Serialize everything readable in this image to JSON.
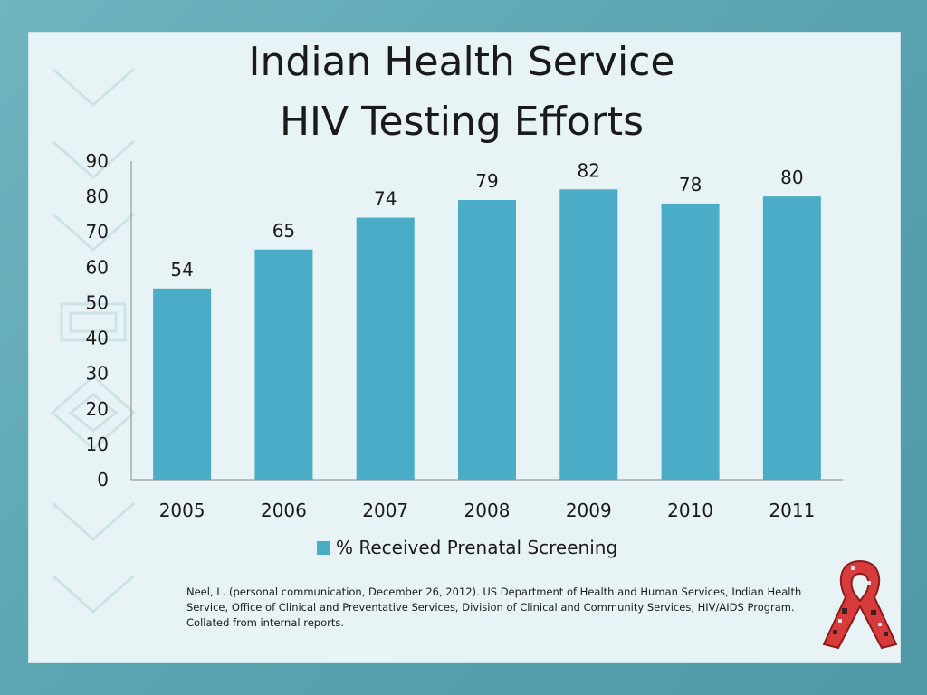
{
  "title_line1": "Indian Health Service",
  "title_line2": "HIV Testing Efforts",
  "legend_label": "% Received Prenatal Screening",
  "source_text": "Neel, L. (personal communication, December 26, 2012). US Department of Health and Human Services, Indian Health Service, Office of Clinical and Preventative Services, Division of Clinical and Community Services, HIV/AIDS Program. Collated from internal reports.",
  "colors": {
    "bar": "#4aacc6",
    "background": "#e8f3f5",
    "frame": "#5ea9b6"
  },
  "icons": {
    "ribbon": "awareness-ribbon-icon"
  },
  "chart_data": {
    "type": "bar",
    "categories": [
      "2005",
      "2006",
      "2007",
      "2008",
      "2009",
      "2010",
      "2011"
    ],
    "series": [
      {
        "name": "% Received Prenatal Screening",
        "values": [
          54,
          65,
          74,
          79,
          82,
          78,
          80
        ]
      }
    ],
    "data_labels": [
      "54",
      "65",
      "74",
      "79",
      "82",
      "78",
      "80"
    ],
    "y_ticks": [
      "0",
      "10",
      "20",
      "30",
      "40",
      "50",
      "60",
      "70",
      "80",
      "90"
    ],
    "ylim": [
      0,
      90
    ],
    "grid": false,
    "legend_position": "bottom"
  }
}
